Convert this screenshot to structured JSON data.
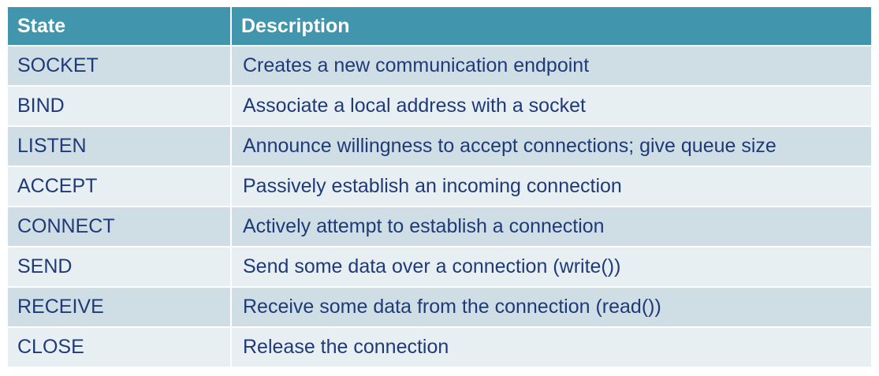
{
  "table": {
    "headers": [
      "State",
      "Description"
    ],
    "rows": [
      [
        "SOCKET",
        "Creates a new communication endpoint"
      ],
      [
        "BIND",
        "Associate a local address with a socket"
      ],
      [
        "LISTEN",
        "Announce willingness to accept connections; give queue size"
      ],
      [
        "ACCEPT",
        "Passively establish an incoming connection"
      ],
      [
        "CONNECT",
        "Actively attempt to establish a connection"
      ],
      [
        "SEND",
        "Send some data over a connection (write())"
      ],
      [
        "RECEIVE",
        "Receive some data from the connection (read())"
      ],
      [
        "CLOSE",
        "Release the connection"
      ]
    ],
    "colors": {
      "header_bg": "#4196ad",
      "header_text": "#ffffff",
      "row_odd": "#cfdde4",
      "row_even": "#e8eff3",
      "body_text": "#1f3a78"
    }
  }
}
